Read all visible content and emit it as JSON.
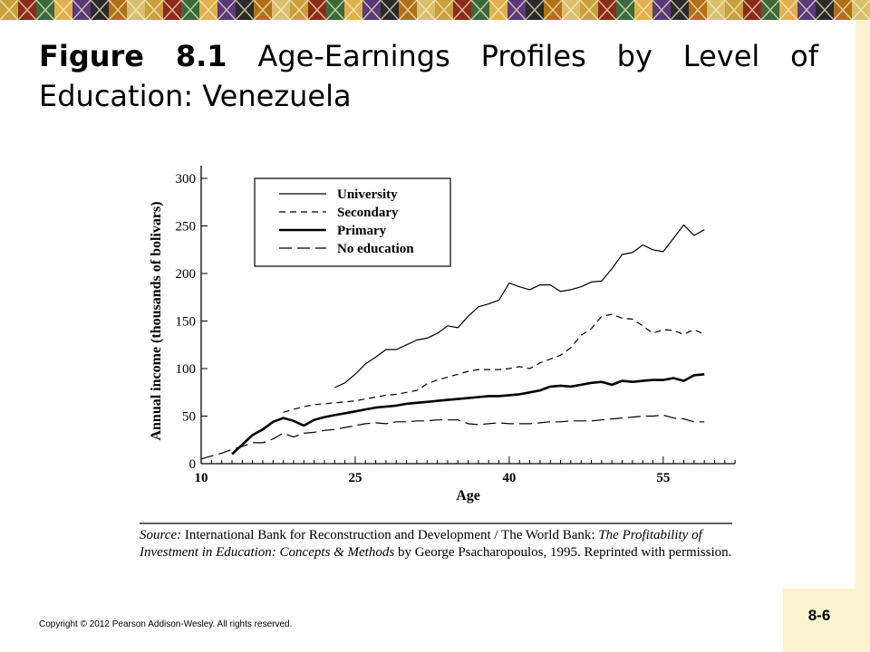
{
  "slide": {
    "figure_label": "Figure 8.1",
    "title_main": "Age-Earnings Profiles by Level of",
    "title_line2": "Education: Venezuela",
    "copyright": "Copyright © 2012 Pearson Addison-Wesley. All rights reserved.",
    "slide_number": "8-6"
  },
  "source_note": {
    "label": "Source:",
    "text1": "International Bank for Reconstruction and Development / The World Bank:",
    "italic": "The Profitability of Investment in Education: Concepts & Methods",
    "text2": "by George Psacharopoulos, 1995. Reprinted with permission."
  },
  "chart_data": {
    "type": "line",
    "xlabel": "Age",
    "ylabel": "Annual income (thousands of bolivars)",
    "xlim": [
      10,
      62
    ],
    "ylim": [
      0,
      300
    ],
    "x_ticks": [
      10,
      25,
      40,
      55
    ],
    "y_ticks": [
      0,
      50,
      100,
      150,
      200,
      250,
      300
    ],
    "legend_position": "top-left",
    "series": [
      {
        "name": "University",
        "style": "solid-thin",
        "x": [
          23,
          24,
          25,
          26,
          27,
          28,
          29,
          30,
          31,
          32,
          33,
          34,
          35,
          36,
          37,
          38,
          39,
          40,
          41,
          42,
          43,
          44,
          45,
          46,
          47,
          48,
          49,
          50,
          51,
          52,
          53,
          54,
          55,
          56,
          57,
          58,
          59
        ],
        "y": [
          80,
          85,
          94,
          105,
          112,
          120,
          120,
          125,
          130,
          132,
          137,
          145,
          143,
          155,
          165,
          168,
          172,
          190,
          186,
          183,
          188,
          188,
          181,
          183,
          186,
          191,
          192,
          205,
          220,
          222,
          230,
          225,
          223,
          237,
          251,
          240,
          246
        ]
      },
      {
        "name": "Secondary",
        "style": "dashed",
        "x": [
          18,
          19,
          20,
          21,
          22,
          23,
          24,
          25,
          26,
          27,
          28,
          29,
          30,
          31,
          32,
          33,
          34,
          35,
          36,
          37,
          38,
          39,
          40,
          41,
          42,
          43,
          44,
          45,
          46,
          47,
          48,
          49,
          50,
          51,
          52,
          53,
          54,
          55,
          56,
          57,
          58,
          59
        ],
        "y": [
          54,
          57,
          60,
          62,
          63,
          64,
          65,
          66,
          68,
          70,
          72,
          73,
          75,
          77,
          84,
          88,
          91,
          94,
          97,
          99,
          99,
          99,
          100,
          102,
          100,
          106,
          110,
          114,
          122,
          135,
          142,
          155,
          157,
          153,
          152,
          145,
          137,
          141,
          140,
          136,
          141,
          136
        ]
      },
      {
        "name": "Primary",
        "style": "solid-thick",
        "x": [
          13,
          14,
          15,
          16,
          17,
          18,
          19,
          20,
          21,
          22,
          23,
          24,
          25,
          26,
          27,
          28,
          29,
          30,
          31,
          32,
          33,
          34,
          35,
          36,
          37,
          38,
          39,
          40,
          41,
          42,
          43,
          44,
          45,
          46,
          47,
          48,
          49,
          50,
          51,
          52,
          53,
          54,
          55,
          56,
          57,
          58,
          59
        ],
        "y": [
          10,
          20,
          30,
          36,
          44,
          48,
          45,
          40,
          46,
          49,
          51,
          53,
          55,
          57,
          59,
          60,
          61,
          63,
          64,
          65,
          66,
          67,
          68,
          69,
          70,
          71,
          71,
          72,
          73,
          75,
          77,
          81,
          82,
          81,
          83,
          85,
          86,
          83,
          87,
          86,
          87,
          88,
          88,
          90,
          87,
          93,
          94
        ]
      },
      {
        "name": "No education",
        "style": "long-dash",
        "x": [
          10,
          11,
          12,
          13,
          14,
          15,
          16,
          17,
          18,
          19,
          20,
          21,
          22,
          23,
          24,
          25,
          26,
          27,
          28,
          29,
          30,
          31,
          32,
          33,
          34,
          35,
          36,
          37,
          38,
          39,
          40,
          41,
          42,
          43,
          44,
          45,
          46,
          47,
          48,
          49,
          50,
          51,
          52,
          53,
          54,
          55,
          56,
          57,
          58,
          59
        ],
        "y": [
          5,
          8,
          11,
          15,
          18,
          22,
          22,
          26,
          32,
          28,
          32,
          33,
          35,
          36,
          38,
          40,
          42,
          43,
          42,
          44,
          44,
          45,
          45,
          46,
          46,
          46,
          42,
          41,
          42,
          43,
          42,
          42,
          42,
          43,
          44,
          44,
          45,
          45,
          45,
          46,
          47,
          48,
          49,
          50,
          50,
          51,
          48,
          47,
          44,
          44
        ]
      }
    ]
  },
  "colors": {
    "background": "#ffffff",
    "side_bar": "#fbf3cf",
    "line": "#000000"
  }
}
